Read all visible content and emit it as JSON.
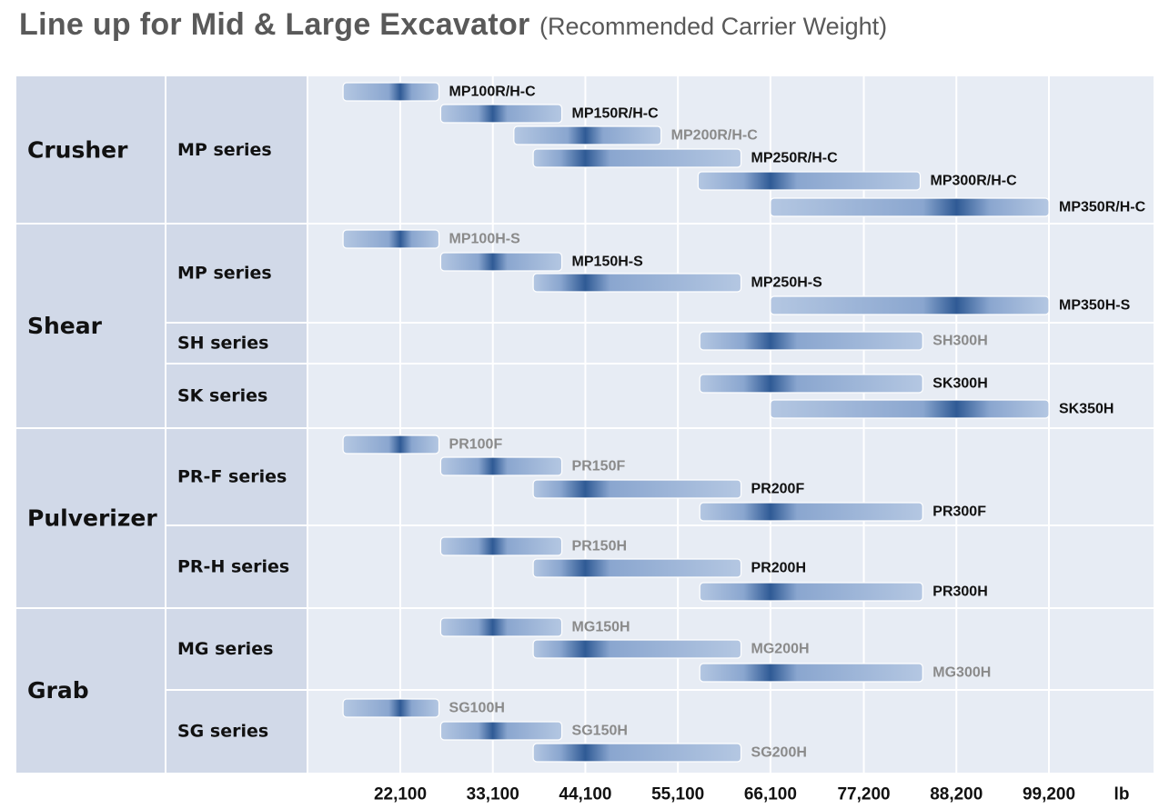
{
  "title": {
    "main": "Line up for Mid & Large Excavator",
    "subtitle": "(Recommended Carrier Weight)"
  },
  "colors": {
    "category_bg": "#d1d9e8",
    "plot_bg": "#e7ecf4",
    "grid": "#ffffff",
    "bar_light": "#b4c7e2",
    "bar_dark": "#2f5a95",
    "label_dark": "#111111",
    "label_gray": "#8a8a8a"
  },
  "chart_data": {
    "type": "bar",
    "orientation": "horizontal-range",
    "xlabel": "lb",
    "x_ticks": [
      22100,
      33100,
      44100,
      55100,
      66100,
      77200,
      88200,
      99200
    ],
    "x_tick_labels": [
      "22,100",
      "33,100",
      "44,100",
      "55,100",
      "66,100",
      "77,200",
      "88,200",
      "99,200"
    ],
    "xlim": [
      11600,
      123900
    ],
    "categories": [
      {
        "name": "Crusher",
        "groups": [
          {
            "name": "MP series",
            "items": [
              {
                "label": "MP100R/H-C",
                "range": [
                  15300,
                  26700
                ],
                "peak": 22100,
                "label_color": "dark"
              },
              {
                "label": "MP150R/H-C",
                "range": [
                  26900,
                  41300
                ],
                "peak": 33100,
                "label_color": "dark"
              },
              {
                "label": "MP200R/H-C",
                "range": [
                  35600,
                  53100
                ],
                "peak": 44100,
                "label_color": "gray"
              },
              {
                "label": "MP250R/H-C",
                "range": [
                  37900,
                  62600
                ],
                "peak": 44100,
                "label_color": "dark"
              },
              {
                "label": "MP300R/H-C",
                "range": [
                  57500,
                  83900
                ],
                "peak": 66100,
                "label_color": "dark"
              },
              {
                "label": "MP350R/H-C",
                "range": [
                  66100,
                  99200
                ],
                "peak": 88200,
                "label_color": "dark"
              }
            ]
          }
        ]
      },
      {
        "name": "Shear",
        "groups": [
          {
            "name": "MP series",
            "items": [
              {
                "label": "MP100H-S",
                "range": [
                  15300,
                  26700
                ],
                "peak": 22100,
                "label_color": "gray"
              },
              {
                "label": "MP150H-S",
                "range": [
                  26900,
                  41300
                ],
                "peak": 33100,
                "label_color": "dark"
              },
              {
                "label": "MP250H-S",
                "range": [
                  37900,
                  62600
                ],
                "peak": 44100,
                "label_color": "dark"
              },
              {
                "label": "MP350H-S",
                "range": [
                  66100,
                  99200
                ],
                "peak": 88200,
                "label_color": "dark"
              }
            ]
          },
          {
            "name": "SH series",
            "items": [
              {
                "label": "SH300H",
                "range": [
                  57700,
                  84200
                ],
                "peak": 66100,
                "label_color": "gray"
              }
            ]
          },
          {
            "name": "SK series",
            "items": [
              {
                "label": "SK300H",
                "range": [
                  57700,
                  84200
                ],
                "peak": 66100,
                "label_color": "dark"
              },
              {
                "label": "SK350H",
                "range": [
                  66100,
                  99200
                ],
                "peak": 88200,
                "label_color": "dark"
              }
            ]
          }
        ]
      },
      {
        "name": "Pulverizer",
        "groups": [
          {
            "name": "PR-F series",
            "items": [
              {
                "label": "PR100F",
                "range": [
                  15300,
                  26700
                ],
                "peak": 22100,
                "label_color": "gray"
              },
              {
                "label": "PR150F",
                "range": [
                  26900,
                  41300
                ],
                "peak": 33100,
                "label_color": "gray"
              },
              {
                "label": "PR200F",
                "range": [
                  37900,
                  62600
                ],
                "peak": 44100,
                "label_color": "dark"
              },
              {
                "label": "PR300F",
                "range": [
                  57700,
                  84200
                ],
                "peak": 66100,
                "label_color": "dark"
              }
            ]
          },
          {
            "name": "PR-H series",
            "items": [
              {
                "label": "PR150H",
                "range": [
                  26900,
                  41300
                ],
                "peak": 33100,
                "label_color": "gray"
              },
              {
                "label": "PR200H",
                "range": [
                  37900,
                  62600
                ],
                "peak": 44100,
                "label_color": "dark"
              },
              {
                "label": "PR300H",
                "range": [
                  57700,
                  84200
                ],
                "peak": 66100,
                "label_color": "dark"
              }
            ]
          }
        ]
      },
      {
        "name": "Grab",
        "groups": [
          {
            "name": "MG series",
            "items": [
              {
                "label": "MG150H",
                "range": [
                  26900,
                  41300
                ],
                "peak": 33100,
                "label_color": "gray"
              },
              {
                "label": "MG200H",
                "range": [
                  37900,
                  62600
                ],
                "peak": 44100,
                "label_color": "gray"
              },
              {
                "label": "MG300H",
                "range": [
                  57700,
                  84200
                ],
                "peak": 66100,
                "label_color": "gray"
              }
            ]
          },
          {
            "name": "SG series",
            "items": [
              {
                "label": "SG100H",
                "range": [
                  15300,
                  26700
                ],
                "peak": 22100,
                "label_color": "gray"
              },
              {
                "label": "SG150H",
                "range": [
                  26900,
                  41300
                ],
                "peak": 33100,
                "label_color": "gray"
              },
              {
                "label": "SG200H",
                "range": [
                  37900,
                  62600
                ],
                "peak": 44100,
                "label_color": "gray"
              }
            ]
          }
        ]
      }
    ],
    "grid": true,
    "legend": "none"
  }
}
